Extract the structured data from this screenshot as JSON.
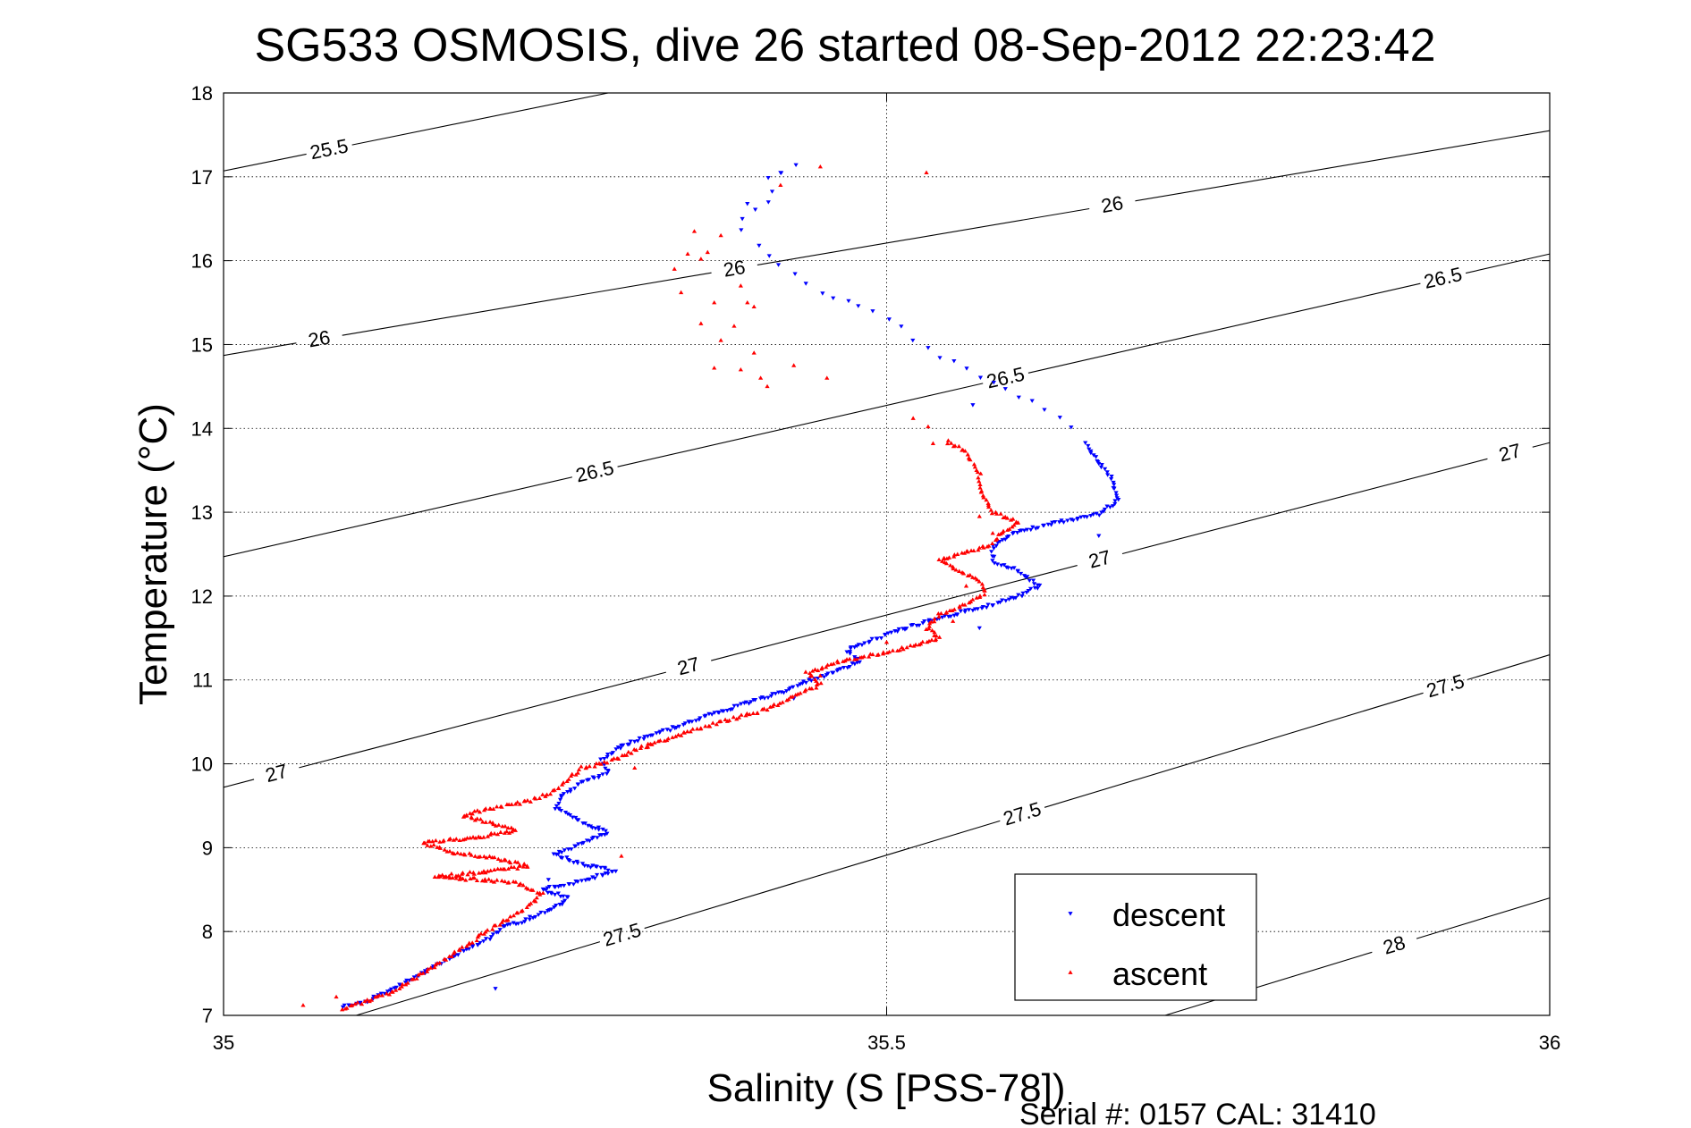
{
  "chart_data": {
    "type": "scatter",
    "title": "SG533 OSMOSIS, dive 26 started 08-Sep-2012 22:23:42",
    "xlabel": "Salinity (S [PSS-78])",
    "ylabel": "Temperature (°C)",
    "xlim": [
      35,
      36
    ],
    "ylim": [
      7,
      18
    ],
    "x_ticks": [
      "35",
      "35.5",
      "36"
    ],
    "y_ticks": [
      "7",
      "8",
      "9",
      "10",
      "11",
      "12",
      "13",
      "14",
      "15",
      "16",
      "17",
      "18"
    ],
    "grid": true,
    "legend_position": "bottom-right",
    "footer": "Serial #: 0157  CAL: 31410",
    "contour_lines": [
      {
        "label": "25.5",
        "points": [
          [
            35.0,
            17.07
          ],
          [
            35.29,
            18.0
          ]
        ],
        "label_positions": [
          [
            35.08,
            17.3
          ]
        ]
      },
      {
        "label": "26",
        "points": [
          [
            35.0,
            14.87
          ],
          [
            36.0,
            17.55
          ]
        ],
        "label_positions": [
          [
            35.072,
            15.08
          ],
          [
            35.385,
            15.92
          ],
          [
            35.67,
            16.68
          ]
        ]
      },
      {
        "label": "26.5",
        "points": [
          [
            35.0,
            12.47
          ],
          [
            36.0,
            16.08
          ]
        ],
        "label_positions": [
          [
            35.28,
            13.48
          ],
          [
            35.59,
            14.58
          ],
          [
            35.92,
            15.76
          ]
        ]
      },
      {
        "label": "27",
        "points": [
          [
            35.0,
            9.72
          ],
          [
            36.0,
            13.83
          ]
        ],
        "label_positions": [
          [
            35.04,
            9.88
          ],
          [
            35.35,
            11.2
          ],
          [
            35.66,
            12.48
          ],
          [
            35.97,
            13.71
          ]
        ]
      },
      {
        "label": "27.5",
        "points": [
          [
            35.1,
            7.0
          ],
          [
            36.0,
            11.3
          ]
        ],
        "label_positions": [
          [
            35.3,
            7.99
          ],
          [
            35.6,
            9.52
          ],
          [
            35.92,
            11.0
          ]
        ]
      },
      {
        "label": "28",
        "points": [
          [
            35.71,
            7.0
          ],
          [
            36.0,
            8.4
          ]
        ],
        "label_positions": [
          [
            35.88,
            7.98
          ]
        ]
      }
    ],
    "series": [
      {
        "name": "descent",
        "color": "#0000ff",
        "marker": "triangle-down",
        "path": [
          [
            35.431,
            17.13
          ],
          [
            35.42,
            17.08
          ],
          [
            35.41,
            17.0
          ],
          [
            35.415,
            16.85
          ],
          [
            35.41,
            16.72
          ],
          [
            35.4,
            16.6
          ],
          [
            35.39,
            16.48
          ],
          [
            35.39,
            16.35
          ],
          [
            35.405,
            16.2
          ],
          [
            35.41,
            16.08
          ],
          [
            35.42,
            15.95
          ],
          [
            35.44,
            15.72
          ],
          [
            35.46,
            15.55
          ],
          [
            35.49,
            15.4
          ],
          [
            35.51,
            15.2
          ],
          [
            35.53,
            14.95
          ],
          [
            35.55,
            14.78
          ],
          [
            35.57,
            14.6
          ],
          [
            35.6,
            14.4
          ],
          [
            35.62,
            14.2
          ],
          [
            35.64,
            14.0
          ],
          [
            35.65,
            13.82
          ],
          [
            35.66,
            13.6
          ],
          [
            35.67,
            13.4
          ],
          [
            35.675,
            13.15
          ],
          [
            35.66,
            12.98
          ],
          [
            35.63,
            12.88
          ],
          [
            35.6,
            12.78
          ],
          [
            35.58,
            12.6
          ],
          [
            35.58,
            12.42
          ],
          [
            35.6,
            12.3
          ],
          [
            35.615,
            12.12
          ],
          [
            35.6,
            12.0
          ],
          [
            35.575,
            11.88
          ],
          [
            35.55,
            11.78
          ],
          [
            35.52,
            11.65
          ],
          [
            35.49,
            11.48
          ],
          [
            35.47,
            11.35
          ],
          [
            35.48,
            11.22
          ],
          [
            35.46,
            11.1
          ],
          [
            35.44,
            10.98
          ],
          [
            35.42,
            10.85
          ],
          [
            35.39,
            10.7
          ],
          [
            35.36,
            10.55
          ],
          [
            35.33,
            10.38
          ],
          [
            35.3,
            10.22
          ],
          [
            35.285,
            10.05
          ],
          [
            35.29,
            9.9
          ],
          [
            35.27,
            9.78
          ],
          [
            35.255,
            9.62
          ],
          [
            35.25,
            9.48
          ],
          [
            35.27,
            9.3
          ],
          [
            35.29,
            9.18
          ],
          [
            35.27,
            9.05
          ],
          [
            35.25,
            8.92
          ],
          [
            35.27,
            8.8
          ],
          [
            35.295,
            8.72
          ],
          [
            35.27,
            8.6
          ],
          [
            35.24,
            8.5
          ],
          [
            35.26,
            8.4
          ],
          [
            35.25,
            8.28
          ],
          [
            35.23,
            8.15
          ],
          [
            35.21,
            8.05
          ],
          [
            35.2,
            7.92
          ],
          [
            35.185,
            7.8
          ],
          [
            35.17,
            7.68
          ],
          [
            35.155,
            7.55
          ],
          [
            35.14,
            7.42
          ],
          [
            35.125,
            7.3
          ],
          [
            35.11,
            7.18
          ],
          [
            35.09,
            7.1
          ]
        ],
        "extra_points": [
          [
            35.205,
            7.32
          ],
          [
            35.395,
            16.68
          ],
          [
            35.42,
            17.05
          ],
          [
            35.66,
            13.58
          ],
          [
            35.565,
            14.28
          ],
          [
            35.66,
            12.72
          ],
          [
            35.57,
            11.62
          ],
          [
            35.43,
            10.78
          ],
          [
            35.245,
            8.62
          ]
        ]
      },
      {
        "name": "ascent",
        "color": "#ff0000",
        "marker": "triangle-up",
        "path": [
          [
            35.09,
            7.08
          ],
          [
            35.11,
            7.18
          ],
          [
            35.13,
            7.3
          ],
          [
            35.145,
            7.45
          ],
          [
            35.16,
            7.6
          ],
          [
            35.175,
            7.75
          ],
          [
            35.19,
            7.9
          ],
          [
            35.2,
            8.02
          ],
          [
            35.215,
            8.15
          ],
          [
            35.23,
            8.3
          ],
          [
            35.24,
            8.45
          ],
          [
            35.22,
            8.58
          ],
          [
            35.19,
            8.62
          ],
          [
            35.16,
            8.65
          ],
          [
            35.2,
            8.72
          ],
          [
            35.23,
            8.78
          ],
          [
            35.2,
            8.88
          ],
          [
            35.17,
            8.95
          ],
          [
            35.15,
            9.06
          ],
          [
            35.19,
            9.12
          ],
          [
            35.22,
            9.2
          ],
          [
            35.2,
            9.3
          ],
          [
            35.18,
            9.38
          ],
          [
            35.2,
            9.46
          ],
          [
            35.23,
            9.55
          ],
          [
            35.25,
            9.68
          ],
          [
            35.26,
            9.82
          ],
          [
            35.27,
            9.95
          ],
          [
            35.29,
            10.02
          ],
          [
            35.32,
            10.22
          ],
          [
            35.35,
            10.38
          ],
          [
            35.38,
            10.52
          ],
          [
            35.41,
            10.65
          ],
          [
            35.43,
            10.8
          ],
          [
            35.45,
            10.95
          ],
          [
            35.44,
            11.08
          ],
          [
            35.46,
            11.2
          ],
          [
            35.49,
            11.3
          ],
          [
            35.52,
            11.4
          ],
          [
            35.54,
            11.5
          ],
          [
            35.53,
            11.62
          ],
          [
            35.54,
            11.78
          ],
          [
            35.56,
            11.9
          ],
          [
            35.575,
            12.05
          ],
          [
            35.57,
            12.18
          ],
          [
            35.555,
            12.3
          ],
          [
            35.54,
            12.42
          ],
          [
            35.56,
            12.52
          ],
          [
            35.58,
            12.62
          ],
          [
            35.585,
            12.75
          ],
          [
            35.6,
            12.88
          ],
          [
            35.58,
            13.0
          ],
          [
            35.575,
            13.15
          ],
          [
            35.57,
            13.3
          ],
          [
            35.57,
            13.45
          ],
          [
            35.565,
            13.58
          ],
          [
            35.56,
            13.72
          ],
          [
            35.545,
            13.85
          ],
          [
            35.53,
            14.0
          ],
          [
            35.52,
            14.12
          ]
        ],
        "extra_points": [
          [
            35.35,
            16.08
          ],
          [
            35.34,
            15.9
          ],
          [
            35.345,
            15.62
          ],
          [
            35.36,
            15.25
          ],
          [
            35.375,
            15.05
          ],
          [
            35.385,
            15.22
          ],
          [
            35.4,
            14.9
          ],
          [
            35.405,
            14.6
          ],
          [
            35.41,
            14.5
          ],
          [
            35.455,
            14.6
          ],
          [
            35.37,
            14.72
          ],
          [
            35.39,
            14.7
          ],
          [
            35.43,
            14.75
          ],
          [
            35.365,
            16.1
          ],
          [
            35.375,
            16.3
          ],
          [
            35.355,
            16.35
          ],
          [
            35.39,
            15.7
          ],
          [
            35.4,
            15.45
          ],
          [
            35.42,
            16.9
          ],
          [
            35.45,
            17.12
          ],
          [
            35.36,
            16.02
          ],
          [
            35.395,
            15.5
          ],
          [
            35.37,
            15.5
          ],
          [
            35.53,
            17.05
          ],
          [
            35.535,
            13.82
          ],
          [
            35.06,
            7.12
          ],
          [
            35.085,
            7.22
          ],
          [
            35.3,
            8.9
          ],
          [
            35.31,
            9.95
          ],
          [
            35.45,
            11.05
          ],
          [
            35.56,
            12.12
          ],
          [
            35.55,
            11.7
          ],
          [
            35.5,
            11.45
          ],
          [
            35.32,
            10.2
          ],
          [
            35.57,
            12.95
          ],
          [
            35.58,
            12.75
          ]
        ]
      }
    ]
  }
}
